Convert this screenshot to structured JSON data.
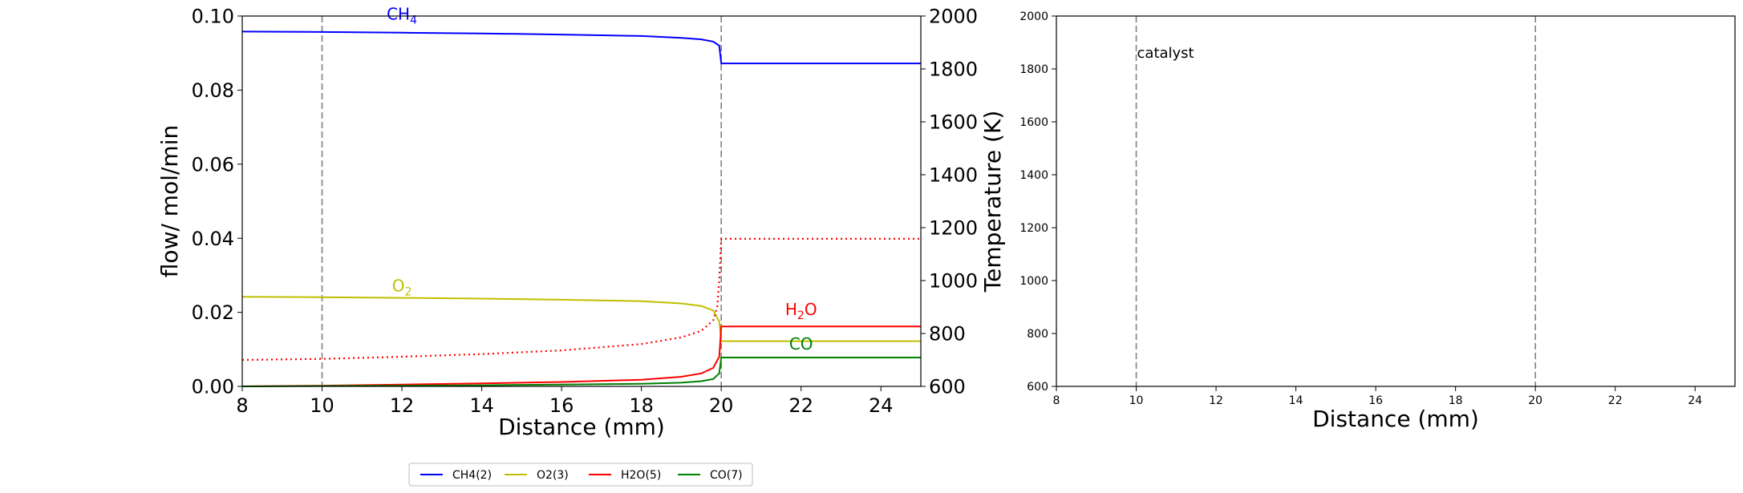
{
  "chart_data": [
    {
      "type": "line",
      "xlabel": "Distance (mm)",
      "ylabel": "flow/ mol/min",
      "y2label": "Temperature (K)",
      "xlim": [
        8,
        25
      ],
      "ylim": [
        0,
        0.1
      ],
      "y2lim": [
        600,
        2000
      ],
      "xticks": [
        "8",
        "10",
        "12",
        "14",
        "16",
        "18",
        "20",
        "22",
        "24"
      ],
      "yticks": [
        "0.00",
        "0.02",
        "0.04",
        "0.06",
        "0.08",
        "0.10"
      ],
      "y2ticks": [
        "600",
        "800",
        "1000",
        "1200",
        "1400",
        "1600",
        "1800",
        "2000"
      ],
      "vlines": [
        10,
        20
      ],
      "grid": false,
      "series": [
        {
          "name": "CH4(2)",
          "color": "#0000ff",
          "style": "solid",
          "x": [
            8,
            10,
            12,
            14,
            16,
            18,
            19,
            19.5,
            19.8,
            19.95,
            20,
            25
          ],
          "y": [
            0.0958,
            0.0957,
            0.0955,
            0.0953,
            0.095,
            0.0946,
            0.0941,
            0.0937,
            0.0931,
            0.092,
            0.0872,
            0.0872
          ]
        },
        {
          "name": "O2(3)",
          "color": "#bfbf00",
          "style": "solid",
          "x": [
            8,
            10,
            12,
            14,
            16,
            18,
            19,
            19.5,
            19.8,
            19.95,
            20,
            25
          ],
          "y": [
            0.0242,
            0.0241,
            0.0239,
            0.0237,
            0.0234,
            0.023,
            0.0224,
            0.0217,
            0.0205,
            0.0175,
            0.0122,
            0.0122
          ]
        },
        {
          "name": "H2O(5)",
          "color": "#ff0000",
          "style": "solid",
          "x": [
            8,
            10,
            12,
            14,
            16,
            18,
            19,
            19.5,
            19.8,
            19.95,
            20,
            25
          ],
          "y": [
            0.0,
            0.0002,
            0.0005,
            0.0008,
            0.0012,
            0.0018,
            0.0026,
            0.0035,
            0.005,
            0.008,
            0.0162,
            0.0162
          ]
        },
        {
          "name": "CO(7)",
          "color": "#008000",
          "style": "solid",
          "x": [
            8,
            10,
            12,
            14,
            16,
            18,
            19,
            19.5,
            19.8,
            19.95,
            20,
            25
          ],
          "y": [
            0.0,
            0.0001,
            0.0002,
            0.0003,
            0.0005,
            0.0007,
            0.001,
            0.0014,
            0.002,
            0.0035,
            0.0078,
            0.0078
          ]
        },
        {
          "name": "Temperature",
          "color": "#ff0000",
          "style": "dotted",
          "axis": "right",
          "x": [
            8,
            10,
            12,
            14,
            16,
            18,
            19,
            19.5,
            19.8,
            19.9,
            19.95,
            20,
            25
          ],
          "y": [
            700,
            704,
            712,
            722,
            736,
            760,
            785,
            810,
            850,
            900,
            1000,
            1158,
            1158
          ]
        }
      ],
      "annotations": [
        {
          "text": "CH",
          "sub": "4",
          "x": 12,
          "y": 0.099,
          "color": "#0000ff"
        },
        {
          "text": "O",
          "sub": "2",
          "x": 12,
          "y": 0.0257,
          "color": "#bfbf00"
        },
        {
          "text": "H",
          "sub": "2",
          "after": "O",
          "x": 22,
          "y": 0.0193,
          "color": "#ff0000"
        },
        {
          "text": "CO",
          "x": 22,
          "y": 0.01,
          "color": "#008000"
        }
      ]
    },
    {
      "type": "line",
      "xlabel": "Distance (mm)",
      "ylabel": "",
      "xlim": [
        8,
        25
      ],
      "ylim": [
        600,
        2000
      ],
      "xticks": [
        "8",
        "10",
        "12",
        "14",
        "16",
        "18",
        "20",
        "22",
        "24"
      ],
      "yticks": [
        "600",
        "800",
        "1000",
        "1200",
        "1400",
        "1600",
        "1800",
        "2000"
      ],
      "vlines": [
        10,
        20
      ],
      "grid": false,
      "series": [],
      "annotations": [
        {
          "text": "catalyst",
          "x": 10,
          "y": 1830,
          "color": "#000000"
        }
      ]
    }
  ],
  "legend": {
    "placement": "bottom",
    "entries": [
      {
        "label": "CH4(2)",
        "color": "#0000ff"
      },
      {
        "label": "O2(3)",
        "color": "#bfbf00"
      },
      {
        "label": "H2O(5)",
        "color": "#ff0000"
      },
      {
        "label": "CO(7)",
        "color": "#008000"
      }
    ]
  }
}
